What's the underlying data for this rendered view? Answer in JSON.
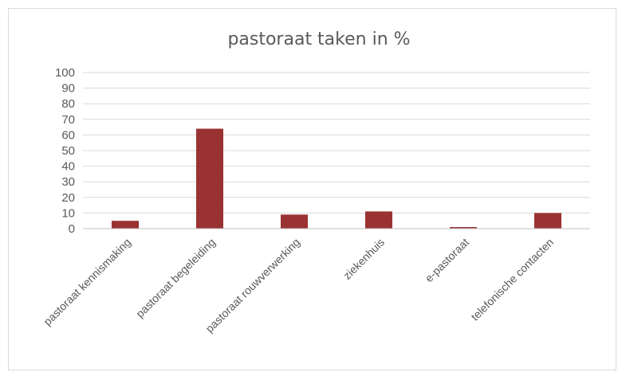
{
  "chart_data": {
    "type": "bar",
    "title": "pastoraat taken in %",
    "xlabel": "",
    "ylabel": "",
    "categories": [
      "pastoraat kennismaking",
      "pastoraat begeleiding",
      "pastoraat rouwverwerking",
      "ziekenhuis",
      "e-pastoraat",
      "telefonische contacten"
    ],
    "values": [
      5,
      64,
      9,
      11,
      1,
      10
    ],
    "ylim": [
      0,
      100
    ],
    "yticks": [
      "0",
      "10",
      "20",
      "30",
      "40",
      "50",
      "60",
      "70",
      "80",
      "90",
      "100"
    ],
    "grid": true,
    "legend": "none",
    "bar_color": "#9b3232",
    "grid_color": "#d9d9d9"
  }
}
